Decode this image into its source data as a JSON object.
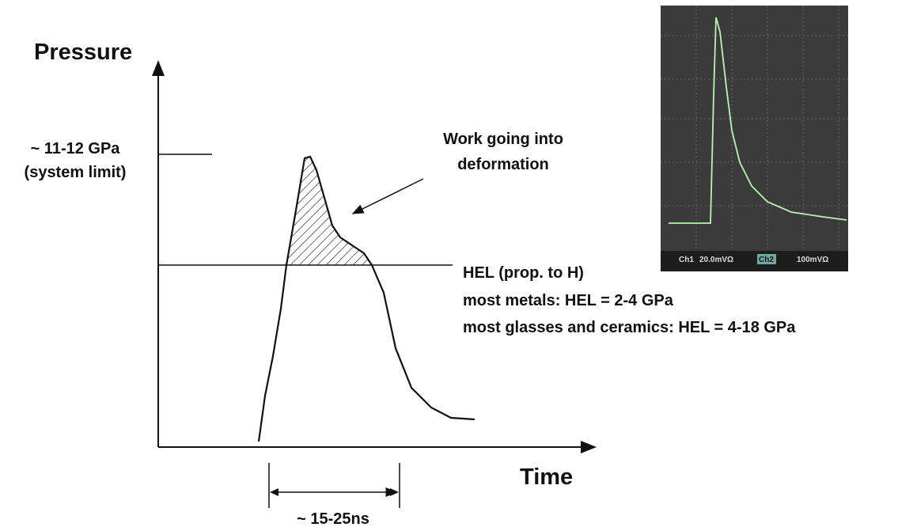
{
  "y_axis_label": "Pressure",
  "x_axis_label": "Time",
  "limit_label": {
    "line1": "~ 11-12 GPa",
    "line2": "(system limit)"
  },
  "work_label": {
    "line1": "Work going into",
    "line2": "deformation"
  },
  "hel_notes": [
    "HEL (prop. to H)",
    "most metals: HEL = 2-4 GPa",
    "most glasses and ceramics: HEL = 4-18 GPa"
  ],
  "duration_label": "~ 15-25ns",
  "scope": {
    "ch1": "Ch1",
    "ch1_scale": "20.0mVΩ",
    "ch2": "Ch2",
    "ch2_scale": "100mVΩ"
  }
}
